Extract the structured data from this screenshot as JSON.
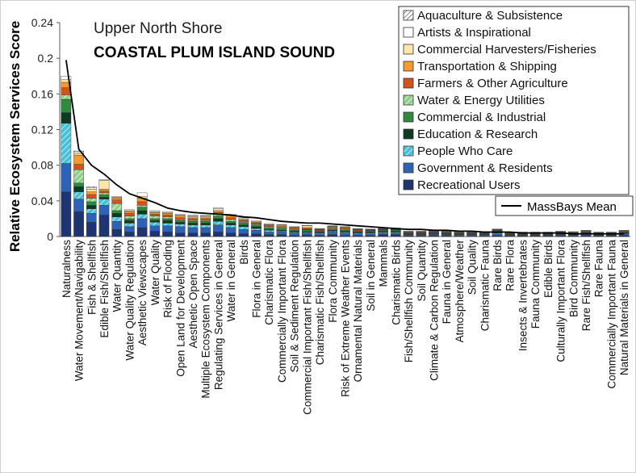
{
  "chart_data": {
    "type": "bar",
    "stacked": true,
    "title": "Upper North Shore",
    "subtitle": "COASTAL PLUM ISLAND SOUND",
    "ylabel": "Relative Ecosystem Services Score",
    "xlabel": "",
    "ylim": [
      0,
      0.24
    ],
    "yticks": [
      "0",
      "0.04",
      "0.08",
      "0.12",
      "0.16",
      "0.2",
      "0.24"
    ],
    "grid": false,
    "legend_position": "top-right",
    "categories": [
      "Naturalness",
      "Water Movement/Navigability",
      "Fish & Shellfish",
      "Edible Fish/Shellfish",
      "Water Quantity",
      "Water Quality Regulation",
      "Aesthetic Viewscapes",
      "Water Quality",
      "Risk of Flooding",
      "Open Land for Development",
      "Aesthetic Open Space",
      "Multiple Ecosystem Components",
      "Regulating Services in General",
      "Water in General",
      "Birds",
      "Flora in General",
      "Charismatic Flora",
      "Commercially Important Flora",
      "Soil & Sediment Regulation",
      "Commercial Important Fish/Shellfish",
      "Charismatic Fish/Shellfish",
      "Flora Community",
      "Risk of Extreme Weather Events",
      "Ornamental Natural Materials",
      "Soil in General",
      "Mammals",
      "Charismatic Birds",
      "Fish/Shellfish Community",
      "Soil Quantity",
      "Climate & Carbon Regulation",
      "Fauna in General",
      "Atmosphere/Weather",
      "Soil Quality",
      "Charismatic Fauna",
      "Rare Birds",
      "Rare Flora",
      "Insects & Invertebrates",
      "Fauna Community",
      "Edible Birds",
      "Culturally Important Flora",
      "Bird Community",
      "Rare Fish/Shellfish",
      "Rare Fauna",
      "Commercially Important Fauna",
      "Natural Materials in General"
    ],
    "series": [
      {
        "name": "Recreational Users",
        "color": "#1f3471",
        "pattern": "solid",
        "values": [
          0.05,
          0.028,
          0.016,
          0.024,
          0.008,
          0.005,
          0.01,
          0.006,
          0.005,
          0.004,
          0.004,
          0.004,
          0.005,
          0.004,
          0.003,
          0.003,
          0.002,
          0.002,
          0.001,
          0.0015,
          0.001,
          0.002,
          0.001,
          0.001,
          0.001,
          0.002,
          0.002,
          0.001,
          0.001,
          0.001,
          0.001,
          0.0005,
          0.0005,
          0.0005,
          0.001,
          0.0005,
          0.0005,
          0.0005,
          0.0005,
          0.001,
          0.0005,
          0.001,
          0.0005,
          0.0005,
          0.001
        ]
      },
      {
        "name": "Government & Residents",
        "color": "#2e62b6",
        "pattern": "solid",
        "values": [
          0.032,
          0.014,
          0.01,
          0.011,
          0.009,
          0.006,
          0.01,
          0.006,
          0.007,
          0.007,
          0.006,
          0.006,
          0.008,
          0.006,
          0.005,
          0.004,
          0.003,
          0.003,
          0.003,
          0.002,
          0.002,
          0.003,
          0.003,
          0.002,
          0.002,
          0.002,
          0.002,
          0.001,
          0.001,
          0.0015,
          0.001,
          0.001,
          0.001,
          0.001,
          0.002,
          0.0005,
          0.0005,
          0.0005,
          0.0005,
          0.001,
          0.001,
          0.002,
          0.0005,
          0.0005,
          0.002
        ]
      },
      {
        "name": "People Who Care",
        "color": "#49c0d8",
        "pattern": "hatch",
        "values": [
          0.045,
          0.008,
          0.005,
          0.007,
          0.005,
          0.004,
          0.005,
          0.004,
          0.003,
          0.003,
          0.003,
          0.003,
          0.004,
          0.003,
          0.003,
          0.002,
          0.002,
          0.001,
          0.001,
          0.001,
          0.001,
          0.001,
          0.001,
          0.001,
          0.001,
          0.001,
          0.001,
          0.0005,
          0.0005,
          0.0005,
          0.0005,
          0.0005,
          0.0005,
          0.0005,
          0.001,
          0.0005,
          0.0005,
          0.0005,
          0.0005,
          0.0005,
          0.0005,
          0.0005,
          0.0005,
          0.0005,
          0.0005
        ]
      },
      {
        "name": "Education & Research",
        "color": "#0e3a22",
        "pattern": "solid",
        "values": [
          0.012,
          0.006,
          0.004,
          0.002,
          0.004,
          0.003,
          0.004,
          0.002,
          0.003,
          0.002,
          0.002,
          0.002,
          0.003,
          0.002,
          0.002,
          0.002,
          0.001,
          0.001,
          0.001,
          0.001,
          0.001,
          0.001,
          0.001,
          0.001,
          0.001,
          0.001,
          0.001,
          0.0005,
          0.0005,
          0.0005,
          0.0005,
          0.0005,
          0.0005,
          0.0005,
          0.001,
          0.0005,
          0.0005,
          0.0005,
          0.0005,
          0.0005,
          0.0005,
          0.0005,
          0.0005,
          0.0005,
          0.0005
        ]
      },
      {
        "name": "Commercial & Industrial",
        "color": "#2f8a3d",
        "pattern": "solid",
        "values": [
          0.015,
          0.004,
          0.004,
          0.003,
          0.003,
          0.002,
          0.004,
          0.002,
          0.002,
          0.002,
          0.002,
          0.002,
          0.003,
          0.002,
          0.002,
          0.002,
          0.002,
          0.002,
          0.001,
          0.002,
          0.001,
          0.001,
          0.001,
          0.001,
          0.001,
          0.001,
          0.001,
          0.0005,
          0.0005,
          0.0005,
          0.0005,
          0.0005,
          0.0005,
          0.0005,
          0.001,
          0.0005,
          0.0005,
          0.0005,
          0.0005,
          0.0005,
          0.0005,
          0.0005,
          0.0005,
          0.0005,
          0.0005
        ]
      },
      {
        "name": "Water & Energy Utilities",
        "color": "#8fd08b",
        "pattern": "hatch",
        "values": [
          0.005,
          0.015,
          0.004,
          0.002,
          0.008,
          0.003,
          0.002,
          0.003,
          0.002,
          0.001,
          0.001,
          0.001,
          0.002,
          0.002,
          0.001,
          0.001,
          0.001,
          0.001,
          0.001,
          0.0005,
          0.0005,
          0.001,
          0.001,
          0.0005,
          0.0005,
          0.0005,
          0.0005,
          0.0005,
          0.0005,
          0.0005,
          0.0005,
          0.0005,
          0.0005,
          0.0005,
          0.0005,
          0.0005,
          0.0005,
          0.0005,
          0.0005,
          0.0005,
          0.0005,
          0.0005,
          0.0005,
          0.0005,
          0.0005
        ]
      },
      {
        "name": "Farmers & Other Agriculture",
        "color": "#d2541c",
        "pattern": "solid",
        "values": [
          0.008,
          0.006,
          0.004,
          0.002,
          0.004,
          0.003,
          0.004,
          0.002,
          0.002,
          0.002,
          0.002,
          0.002,
          0.002,
          0.002,
          0.002,
          0.001,
          0.001,
          0.001,
          0.001,
          0.001,
          0.001,
          0.001,
          0.001,
          0.001,
          0.0005,
          0.0005,
          0.0005,
          0.0005,
          0.0005,
          0.0005,
          0.0005,
          0.0005,
          0.0005,
          0.0005,
          0.0005,
          0.0005,
          0.0005,
          0.0005,
          0.0005,
          0.0005,
          0.0005,
          0.0005,
          0.0005,
          0.0005,
          0.0005
        ]
      },
      {
        "name": "Transportation & Shipping",
        "color": "#f59a2e",
        "pattern": "solid",
        "values": [
          0.006,
          0.01,
          0.003,
          0.002,
          0.002,
          0.002,
          0.004,
          0.002,
          0.002,
          0.002,
          0.002,
          0.002,
          0.002,
          0.002,
          0.001,
          0.001,
          0.001,
          0.001,
          0.001,
          0.001,
          0.0005,
          0.001,
          0.001,
          0.0005,
          0.0005,
          0.0005,
          0.0005,
          0.0005,
          0.0005,
          0.0005,
          0.0005,
          0.0005,
          0.0005,
          0.0005,
          0.0005,
          0.0005,
          0.0005,
          0.0005,
          0.0005,
          0.0005,
          0.0005,
          0.0005,
          0.0005,
          0.0005,
          0.0005
        ]
      },
      {
        "name": "Commercial Harvesters/Fisheries",
        "color": "#fde6a8",
        "pattern": "solid",
        "values": [
          0.003,
          0.002,
          0.003,
          0.01,
          0.001,
          0.001,
          0.002,
          0.001,
          0.001,
          0.001,
          0.001,
          0.001,
          0.002,
          0.001,
          0.001,
          0.001,
          0.0005,
          0.001,
          0.0005,
          0.002,
          0.0005,
          0.0005,
          0.0005,
          0.0005,
          0.0005,
          0.0005,
          0.0005,
          0.0005,
          0.0005,
          0.0005,
          0.0005,
          0.0005,
          0.0005,
          0.0005,
          0.0005,
          0.0005,
          0.0005,
          0.0005,
          0.0005,
          0.0005,
          0.0005,
          0.0005,
          0.0005,
          0.0005,
          0.0005
        ]
      },
      {
        "name": "Artists & Inspirational",
        "color": "#ffffff",
        "pattern": "solid",
        "values": [
          0.004,
          0.002,
          0.002,
          0.001,
          0.001,
          0.001,
          0.004,
          0.001,
          0.001,
          0.001,
          0.001,
          0.001,
          0.001,
          0.001,
          0.001,
          0.001,
          0.001,
          0.0005,
          0.0005,
          0.0005,
          0.0005,
          0.0005,
          0.0005,
          0.0005,
          0.0005,
          0.0005,
          0.0005,
          0.0005,
          0.0005,
          0.0005,
          0.0005,
          0.0005,
          0.0005,
          0.0005,
          0.0005,
          0.0005,
          0.0005,
          0.0005,
          0.0005,
          0.0005,
          0.0005,
          0.0005,
          0.0005,
          0.0005,
          0.0005
        ]
      },
      {
        "name": "Aquaculture & Subsistence",
        "color": "#ffffff",
        "pattern": "crosshatch",
        "values": [
          0.0,
          0.001,
          0.001,
          0.0,
          0.0,
          0.0,
          0.0,
          0.0,
          0.0,
          0.0,
          0.0,
          0.0,
          0.0,
          0.0,
          0.0,
          0.0,
          0.0,
          0.0,
          0.0,
          0.0,
          0.0,
          0.0,
          0.0,
          0.0,
          0.0,
          0.0,
          0.0,
          0.0,
          0.0,
          0.0,
          0.0,
          0.0,
          0.0,
          0.0,
          0.0,
          0.0,
          0.0,
          0.0,
          0.0,
          0.0,
          0.0,
          0.0,
          0.0,
          0.0,
          0.0
        ]
      }
    ],
    "line_series": {
      "name": "MassBays Mean",
      "color": "#000000",
      "values": [
        0.198,
        0.098,
        0.08,
        0.07,
        0.058,
        0.048,
        0.043,
        0.038,
        0.032,
        0.029,
        0.027,
        0.026,
        0.025,
        0.024,
        0.022,
        0.021,
        0.019,
        0.017,
        0.016,
        0.015,
        0.015,
        0.014,
        0.013,
        0.012,
        0.011,
        0.01,
        0.009,
        0.008,
        0.008,
        0.007,
        0.007,
        0.006,
        0.006,
        0.005,
        0.005,
        0.005,
        0.004,
        0.004,
        0.004,
        0.004,
        0.003,
        0.003,
        0.003,
        0.003,
        0.003
      ]
    }
  }
}
